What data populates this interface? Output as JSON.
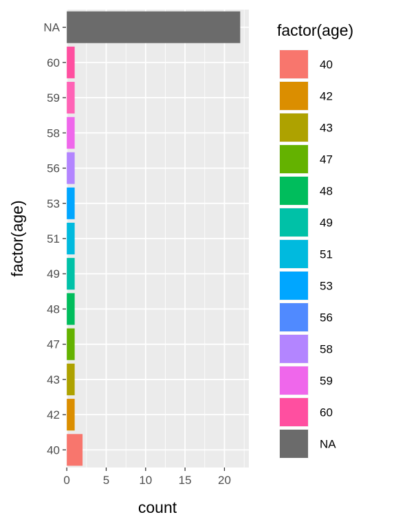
{
  "chart_data": {
    "type": "bar",
    "orientation": "horizontal",
    "categories": [
      "40",
      "42",
      "43",
      "47",
      "48",
      "49",
      "51",
      "53",
      "56",
      "58",
      "59",
      "60",
      "NA"
    ],
    "values": [
      2,
      1,
      1,
      1,
      1,
      1,
      1,
      1,
      1,
      1,
      1,
      1,
      22
    ],
    "colors": [
      "#F8766D",
      "#DB8E00",
      "#AEA200",
      "#64B200",
      "#00BD5C",
      "#00C1A7",
      "#00BADE",
      "#00A6FF",
      "#B385FF",
      "#EF67EB",
      "#FF63B6",
      "#FF4FA0",
      "#6B6B6B"
    ],
    "xlabel": "count",
    "ylabel": "factor(age)",
    "xlim": [
      -0.1,
      23.1
    ],
    "x_ticks": [
      0,
      5,
      10,
      15,
      20
    ],
    "x_minor_ticks": [
      2.5,
      7.5,
      12.5,
      17.5,
      22.5
    ],
    "grid": true,
    "panel_background": "#EBEBEB",
    "legend": {
      "title": "factor(age)",
      "position": "right",
      "entries": [
        "40",
        "42",
        "43",
        "47",
        "48",
        "49",
        "51",
        "53",
        "56",
        "58",
        "59",
        "60",
        "NA"
      ],
      "colors": [
        "#F8766D",
        "#DB8E00",
        "#AEA200",
        "#64B200",
        "#00BD5C",
        "#00C1A7",
        "#00BADE",
        "#00A6FF",
        "#508AFF",
        "#B385FF",
        "#EF67EB",
        "#FF4FA0",
        "#6B6B6B"
      ]
    }
  }
}
